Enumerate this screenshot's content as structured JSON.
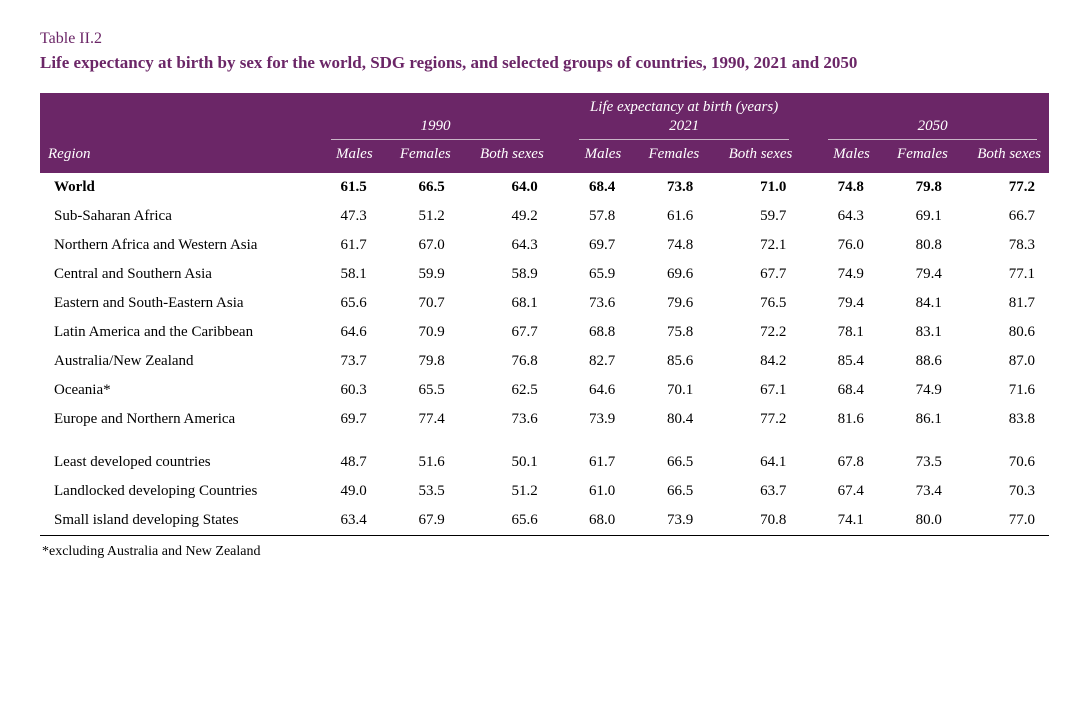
{
  "header": {
    "table_number": "Table II.2",
    "title": "Life expectancy at birth by sex for the world, SDG regions, and selected groups of countries, 1990, 2021 and 2050"
  },
  "table": {
    "super_header": "Life expectancy at birth (years)",
    "region_label": "Region",
    "years": [
      "1990",
      "2021",
      "2050"
    ],
    "sub_cols": [
      "Males",
      "Females",
      "Both sexes"
    ],
    "rows_main": [
      {
        "label": "World",
        "bold": true,
        "v": [
          "61.5",
          "66.5",
          "64.0",
          "68.4",
          "73.8",
          "71.0",
          "74.8",
          "79.8",
          "77.2"
        ]
      },
      {
        "label": "Sub-Saharan Africa",
        "v": [
          "47.3",
          "51.2",
          "49.2",
          "57.8",
          "61.6",
          "59.7",
          "64.3",
          "69.1",
          "66.7"
        ]
      },
      {
        "label": "Northern Africa and Western Asia",
        "v": [
          "61.7",
          "67.0",
          "64.3",
          "69.7",
          "74.8",
          "72.1",
          "76.0",
          "80.8",
          "78.3"
        ]
      },
      {
        "label": "Central and Southern Asia",
        "v": [
          "58.1",
          "59.9",
          "58.9",
          "65.9",
          "69.6",
          "67.7",
          "74.9",
          "79.4",
          "77.1"
        ]
      },
      {
        "label": "Eastern and South-Eastern Asia",
        "v": [
          "65.6",
          "70.7",
          "68.1",
          "73.6",
          "79.6",
          "76.5",
          "79.4",
          "84.1",
          "81.7"
        ]
      },
      {
        "label": "Latin America and the Caribbean",
        "v": [
          "64.6",
          "70.9",
          "67.7",
          "68.8",
          "75.8",
          "72.2",
          "78.1",
          "83.1",
          "80.6"
        ]
      },
      {
        "label": "Australia/New Zealand",
        "v": [
          "73.7",
          "79.8",
          "76.8",
          "82.7",
          "85.6",
          "84.2",
          "85.4",
          "88.6",
          "87.0"
        ]
      },
      {
        "label": "Oceania*",
        "v": [
          "60.3",
          "65.5",
          "62.5",
          "64.6",
          "70.1",
          "67.1",
          "68.4",
          "74.9",
          "71.6"
        ]
      },
      {
        "label": "Europe and Northern America",
        "v": [
          "69.7",
          "77.4",
          "73.6",
          "73.9",
          "80.4",
          "77.2",
          "81.6",
          "86.1",
          "83.8"
        ]
      }
    ],
    "rows_groups": [
      {
        "label": "Least developed countries",
        "v": [
          "48.7",
          "51.6",
          "50.1",
          "61.7",
          "66.5",
          "64.1",
          "67.8",
          "73.5",
          "70.6"
        ]
      },
      {
        "label": "Landlocked developing Countries",
        "v": [
          "49.0",
          "53.5",
          "51.2",
          "61.0",
          "66.5",
          "63.7",
          "67.4",
          "73.4",
          "70.3"
        ]
      },
      {
        "label": "Small island developing States",
        "v": [
          "63.4",
          "67.9",
          "65.6",
          "68.0",
          "73.9",
          "70.8",
          "74.1",
          "80.0",
          "77.0"
        ]
      }
    ]
  },
  "footnote": "*excluding Australia and New Zealand",
  "colors": {
    "accent": "#6b2667",
    "header_text": "#ffffff",
    "body_text": "#000000",
    "rule": "#c9b6c7"
  }
}
